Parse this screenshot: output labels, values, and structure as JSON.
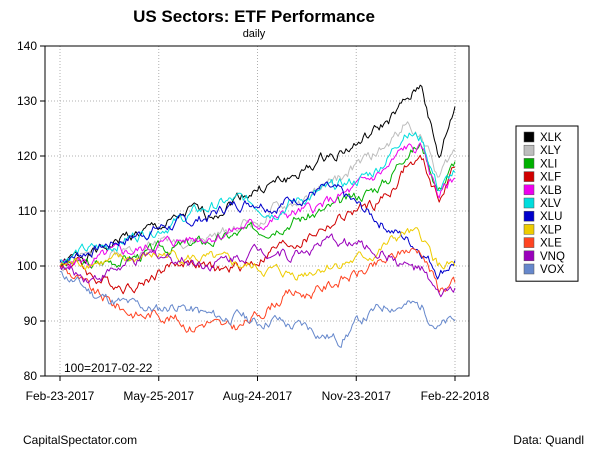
{
  "chart_data": {
    "type": "line",
    "title": "US Sectors: ETF Performance",
    "subtitle": "daily",
    "baseline_note": "100=2017-02-22",
    "xlabel": "",
    "ylabel": "",
    "x_ticks": [
      "Feb-23-2017",
      "May-25-2017",
      "Aug-24-2017",
      "Nov-23-2017",
      "Feb-22-2018"
    ],
    "y_ticks": [
      80,
      90,
      100,
      110,
      120,
      130,
      140
    ],
    "ylim": [
      80,
      140
    ],
    "grid": true,
    "legend_position": "right",
    "series": [
      {
        "name": "XLK",
        "color": "#000000",
        "values": [
          100,
          101.5,
          102.5,
          103.5,
          105.5,
          106,
          107,
          108,
          110,
          109,
          111,
          113,
          114,
          115,
          116,
          117.5,
          119.5,
          121,
          122,
          124,
          126.5,
          129.5,
          133,
          119,
          129
        ]
      },
      {
        "name": "XLY",
        "color": "#bebebe",
        "values": [
          100,
          101,
          101.5,
          102,
          103,
          103.5,
          104.5,
          105,
          104.5,
          105,
          106,
          108,
          108,
          110,
          111,
          112,
          114,
          116,
          118,
          120,
          122,
          126,
          124,
          116,
          121
        ]
      },
      {
        "name": "XLI",
        "color": "#00b000",
        "values": [
          100,
          100.5,
          100,
          101,
          101.5,
          102,
          103,
          103.5,
          104,
          104.5,
          105,
          106,
          106.5,
          107.5,
          108.5,
          109,
          110,
          111,
          112.5,
          114,
          116,
          121,
          122,
          114,
          119
        ]
      },
      {
        "name": "XLF",
        "color": "#d00000",
        "values": [
          100,
          101,
          98,
          97,
          96.5,
          97,
          99,
          100.5,
          101,
          99.5,
          99,
          100,
          101,
          103,
          104,
          105,
          107,
          108.5,
          110,
          111,
          113,
          118,
          119,
          112,
          118
        ]
      },
      {
        "name": "XLB",
        "color": "#ee00ee",
        "values": [
          100,
          101,
          100.5,
          102,
          102.5,
          103,
          104,
          104.5,
          105,
          105.5,
          106,
          107,
          107.5,
          108.5,
          109.5,
          110,
          111,
          112.5,
          114,
          116,
          118,
          121.5,
          121,
          113,
          116
        ]
      },
      {
        "name": "XLV",
        "color": "#00dddd",
        "values": [
          101,
          102.5,
          103,
          103.5,
          105,
          106,
          107,
          108,
          109.5,
          110.5,
          111.5,
          112,
          111,
          110,
          111.5,
          112.5,
          113.5,
          114.5,
          115.5,
          117,
          120,
          125,
          123,
          114,
          117
        ]
      },
      {
        "name": "XLU",
        "color": "#0000cc",
        "values": [
          101,
          102,
          103,
          104,
          105,
          106,
          107,
          107.5,
          108,
          109,
          110.5,
          111.5,
          112,
          111,
          112,
          113,
          114,
          113,
          111,
          109,
          107,
          105,
          103,
          99,
          101
        ]
      },
      {
        "name": "XLP",
        "color": "#eecc00",
        "values": [
          100,
          100.5,
          101,
          100.5,
          101,
          101.5,
          102,
          102,
          101.5,
          101,
          100.5,
          100,
          99.5,
          99,
          98.5,
          99,
          100,
          100.5,
          101,
          102,
          104,
          106,
          105,
          100,
          100
        ]
      },
      {
        "name": "XLE",
        "color": "#ff4422",
        "values": [
          100,
          98,
          95,
          93.5,
          92,
          91,
          91.5,
          90.5,
          89,
          90,
          88.5,
          89,
          91,
          93.5,
          95,
          95,
          96,
          97.5,
          98.5,
          99.5,
          101,
          103,
          103,
          96,
          97
        ]
      },
      {
        "name": "VNQ",
        "color": "#9900bb",
        "values": [
          100,
          98.5,
          98,
          99,
          100,
          101,
          102,
          101.5,
          101,
          100.5,
          101,
          102,
          103,
          103,
          102,
          103,
          104,
          104.5,
          104,
          103,
          102,
          100,
          99,
          94,
          96
        ]
      },
      {
        "name": "VOX",
        "color": "#6688cc",
        "values": [
          99,
          97,
          95,
          94,
          93,
          92.5,
          92,
          93,
          92,
          91,
          90.5,
          91,
          89.5,
          90.5,
          89,
          89,
          87.5,
          86.5,
          89.5,
          91.5,
          93,
          93,
          92.5,
          89,
          90
        ]
      }
    ]
  },
  "footer": {
    "source_left": "CapitalSpectator.com",
    "source_right": "Data: Quandl"
  }
}
